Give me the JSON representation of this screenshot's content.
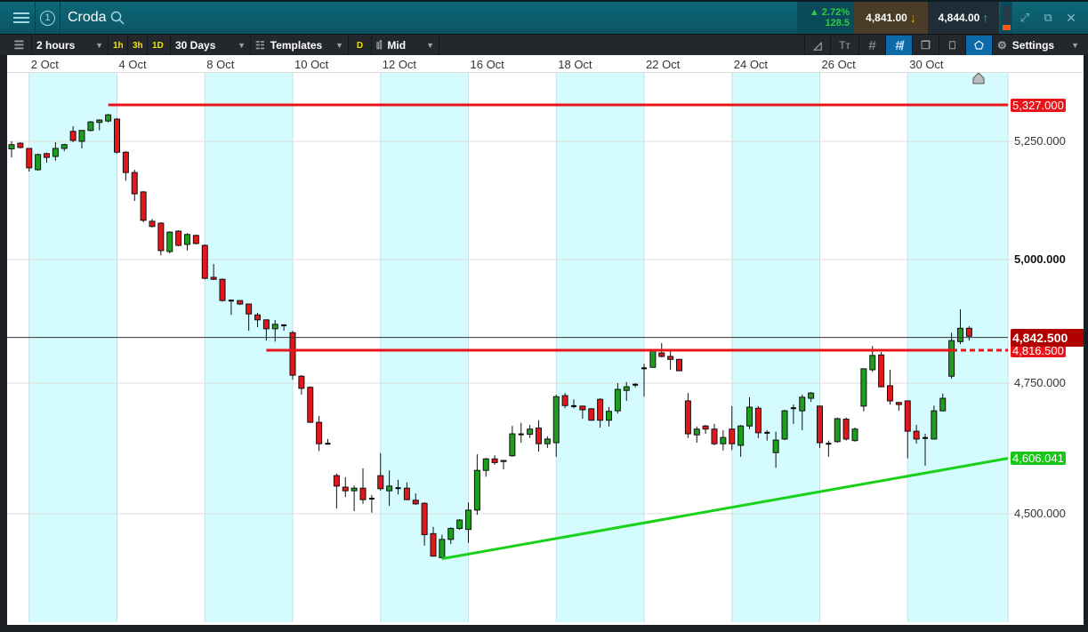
{
  "header": {
    "instrument": "Croda",
    "watchlist_number": "1",
    "change_pct": "▲ 2.72%",
    "change_abs": "128.5",
    "sell_price": "4,841.00",
    "buy_price": "4,844.00",
    "colors": {
      "up": "#2ecc40",
      "sell_bg": "#4a3c26",
      "buy_bg": "#1f2d36",
      "sell_arrow": "#f0a020",
      "buy_arrow": "#29a8e0"
    }
  },
  "toolbar": {
    "interval": "2 hours",
    "quick_intervals": [
      "1h",
      "3h",
      "1D"
    ],
    "range": "30 Days",
    "templates": "Templates",
    "d_label": "D",
    "price_type": "Mid",
    "settings": "Settings"
  },
  "chart_data": {
    "type": "candlestick",
    "scale": "log",
    "x_tick_labels": [
      "2 Oct",
      "4 Oct",
      "8 Oct",
      "10 Oct",
      "12 Oct",
      "16 Oct",
      "18 Oct",
      "22 Oct",
      "24 Oct",
      "26 Oct",
      "30 Oct"
    ],
    "y_ticks": [
      {
        "value": 5250,
        "label": "5,250.000"
      },
      {
        "value": 5000,
        "label": "5,000.000"
      },
      {
        "value": 4750,
        "label": "4,750.000"
      },
      {
        "value": 4500,
        "label": "4,500.000"
      }
    ],
    "grid": true,
    "colors": {
      "up": "#1e9e1e",
      "down": "#e3161b",
      "band": "#d4fbfd",
      "resistance": "#e8141a",
      "support": "#e8141a",
      "trend": "#19d119",
      "last": "#b00000"
    },
    "current_price": {
      "value": 4842.5,
      "label": "4,842.500"
    },
    "lines": [
      {
        "kind": "resistance",
        "value": 5327.0,
        "label": "5,327.000",
        "from_candle": 12
      },
      {
        "kind": "support",
        "value": 4816.5,
        "label": "4,816.500",
        "from_candle": 30
      },
      {
        "kind": "trendline",
        "from_candle": 50,
        "from_value": 4414,
        "to_value": 4606.041,
        "label": "4,606.041"
      }
    ],
    "candles_ohlc": [
      [
        5234,
        5250,
        5216,
        5243
      ],
      [
        5246,
        5248,
        5235,
        5237
      ],
      [
        5235,
        5236,
        5186,
        5194
      ],
      [
        5190,
        5224,
        5188,
        5222
      ],
      [
        5224,
        5226,
        5205,
        5216
      ],
      [
        5218,
        5248,
        5209,
        5235
      ],
      [
        5235,
        5245,
        5229,
        5243
      ],
      [
        5271,
        5282,
        5248,
        5252
      ],
      [
        5250,
        5274,
        5235,
        5273
      ],
      [
        5273,
        5293,
        5271,
        5291
      ],
      [
        5290,
        5297,
        5273,
        5295
      ],
      [
        5293,
        5308,
        5290,
        5306
      ],
      [
        5297,
        5299,
        5224,
        5227
      ],
      [
        5227,
        5229,
        5167,
        5184
      ],
      [
        5184,
        5190,
        5124,
        5139
      ],
      [
        5143,
        5145,
        5079,
        5083
      ],
      [
        5081,
        5086,
        5068,
        5070
      ],
      [
        5077,
        5079,
        5009,
        5019
      ],
      [
        5017,
        5060,
        5013,
        5058
      ],
      [
        5060,
        5062,
        5028,
        5030
      ],
      [
        5032,
        5056,
        5019,
        5053
      ],
      [
        5051,
        5053,
        5032,
        5034
      ],
      [
        5030,
        5032,
        4960,
        4962
      ],
      [
        4964,
        4991,
        4959,
        4960
      ],
      [
        4960,
        4962,
        4915,
        4917
      ],
      [
        4917,
        4918,
        4888,
        4917
      ],
      [
        4917,
        4918,
        4908,
        4910
      ],
      [
        4910,
        4911,
        4856,
        4890
      ],
      [
        4888,
        4892,
        4863,
        4878
      ],
      [
        4878,
        4879,
        4836,
        4860
      ],
      [
        4860,
        4878,
        4834,
        4869
      ],
      [
        4867,
        4869,
        4856,
        4867
      ],
      [
        4852,
        4856,
        4757,
        4766
      ],
      [
        4764,
        4766,
        4728,
        4740
      ],
      [
        4742,
        4744,
        4674,
        4675
      ],
      [
        4675,
        4687,
        4620,
        4634
      ],
      [
        4634,
        4643,
        4633,
        4634
      ],
      [
        4573,
        4577,
        4510,
        4553
      ],
      [
        4551,
        4570,
        4532,
        4544
      ],
      [
        4544,
        4554,
        4505,
        4549
      ],
      [
        4549,
        4587,
        4519,
        4527
      ],
      [
        4529,
        4536,
        4502,
        4529
      ],
      [
        4573,
        4616,
        4544,
        4548
      ],
      [
        4544,
        4583,
        4515,
        4553
      ],
      [
        4549,
        4565,
        4537,
        4549
      ],
      [
        4549,
        4560,
        4526,
        4527
      ],
      [
        4526,
        4539,
        4517,
        4519
      ],
      [
        4520,
        4522,
        4439,
        4460
      ],
      [
        4462,
        4475,
        4418,
        4419
      ],
      [
        4416,
        4460,
        4414,
        4451
      ],
      [
        4451,
        4474,
        4442,
        4472
      ],
      [
        4472,
        4490,
        4469,
        4488
      ],
      [
        4470,
        4522,
        4444,
        4507
      ],
      [
        4507,
        4614,
        4498,
        4583
      ],
      [
        4583,
        4607,
        4571,
        4605
      ],
      [
        4605,
        4612,
        4594,
        4598
      ],
      [
        4600,
        4603,
        4585,
        4602
      ],
      [
        4611,
        4668,
        4609,
        4653
      ],
      [
        4652,
        4674,
        4636,
        4652
      ],
      [
        4652,
        4670,
        4645,
        4662
      ],
      [
        4664,
        4679,
        4619,
        4634
      ],
      [
        4634,
        4648,
        4626,
        4643
      ],
      [
        4636,
        4728,
        4609,
        4724
      ],
      [
        4726,
        4731,
        4702,
        4707
      ],
      [
        4706,
        4719,
        4702,
        4706
      ],
      [
        4706,
        4707,
        4682,
        4699
      ],
      [
        4701,
        4702,
        4678,
        4679
      ],
      [
        4719,
        4721,
        4665,
        4679
      ],
      [
        4679,
        4704,
        4667,
        4696
      ],
      [
        4697,
        4750,
        4692,
        4738
      ],
      [
        4736,
        4752,
        4716,
        4743
      ],
      [
        4747,
        4750,
        4742,
        4747
      ],
      [
        4780,
        4789,
        4724,
        4780
      ],
      [
        4782,
        4816,
        4781,
        4815
      ],
      [
        4811,
        4831,
        4802,
        4804
      ],
      [
        4804,
        4816,
        4777,
        4798
      ],
      [
        4798,
        4799,
        4774,
        4775
      ],
      [
        4716,
        4731,
        4645,
        4653
      ],
      [
        4651,
        4667,
        4636,
        4662
      ],
      [
        4668,
        4670,
        4653,
        4662
      ],
      [
        4662,
        4672,
        4631,
        4634
      ],
      [
        4634,
        4660,
        4621,
        4646
      ],
      [
        4662,
        4706,
        4622,
        4634
      ],
      [
        4631,
        4670,
        4609,
        4668
      ],
      [
        4668,
        4723,
        4662,
        4704
      ],
      [
        4702,
        4706,
        4645,
        4655
      ],
      [
        4655,
        4660,
        4640,
        4655
      ],
      [
        4617,
        4657,
        4588,
        4641
      ],
      [
        4643,
        4699,
        4641,
        4697
      ],
      [
        4702,
        4709,
        4672,
        4702
      ],
      [
        4697,
        4728,
        4660,
        4723
      ],
      [
        4721,
        4733,
        4714,
        4731
      ],
      [
        4706,
        4707,
        4626,
        4636
      ],
      [
        4634,
        4640,
        4609,
        4634
      ],
      [
        4638,
        4684,
        4636,
        4682
      ],
      [
        4681,
        4684,
        4640,
        4643
      ],
      [
        4640,
        4665,
        4638,
        4662
      ],
      [
        4706,
        4780,
        4696,
        4779
      ],
      [
        4777,
        4825,
        4773,
        4806
      ],
      [
        4807,
        4813,
        4742,
        4743
      ],
      [
        4745,
        4777,
        4709,
        4716
      ],
      [
        4713,
        4714,
        4697,
        4709
      ],
      [
        4716,
        4717,
        4606,
        4658
      ],
      [
        4658,
        4670,
        4634,
        4643
      ],
      [
        4645,
        4653,
        4592,
        4645
      ],
      [
        4643,
        4707,
        4642,
        4697
      ],
      [
        4697,
        4730,
        4696,
        4721
      ],
      [
        4764,
        4852,
        4759,
        4836
      ],
      [
        4834,
        4899,
        4829,
        4861
      ],
      [
        4861,
        4865,
        4836,
        4845
      ]
    ]
  }
}
